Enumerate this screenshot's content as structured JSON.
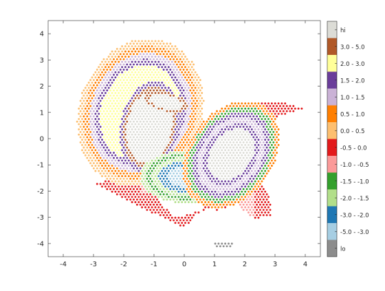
{
  "chart_data": {
    "type": "scatter",
    "title": "",
    "xlabel": "",
    "ylabel": "",
    "xlim": [
      -4.5,
      4.5
    ],
    "ylim": [
      -4.5,
      4.5
    ],
    "x_ticks": [
      "-4",
      "-3",
      "-2",
      "-1",
      "0",
      "1",
      "2",
      "3",
      "4"
    ],
    "y_ticks": [
      "-4",
      "-3",
      "-2",
      "-1",
      "0",
      "1",
      "2",
      "3",
      "4"
    ],
    "grid": false,
    "marker": "dot",
    "colorbar": {
      "placement": "right",
      "classes": [
        {
          "label": "hi",
          "color": "#dcdcd6"
        },
        {
          "label": "3.0 - 5.0",
          "color": "#b15928"
        },
        {
          "label": "2.0 - 3.0",
          "color": "#ffff99"
        },
        {
          "label": "1.5 - 2.0",
          "color": "#6a3d9a"
        },
        {
          "label": "1.0 - 1.5",
          "color": "#cab2d6"
        },
        {
          "label": "0.5 - 1.0",
          "color": "#ff7f00"
        },
        {
          "label": "0.0 - 0.5",
          "color": "#fdbf6f"
        },
        {
          "label": "-0.5 - 0.0",
          "color": "#e31a1c"
        },
        {
          "label": "-1.0 - -0.5",
          "color": "#fb9a99"
        },
        {
          "label": "-1.5 - -1.0",
          "color": "#33a02c"
        },
        {
          "label": "-2.0 - -1.5",
          "color": "#b2df8a"
        },
        {
          "label": "-3.0 - -2.0",
          "color": "#1f78b4"
        },
        {
          "label": "-5.0 - -3.0",
          "color": "#a6cee3"
        },
        {
          "label": "lo",
          "color": "#8c8c8c"
        }
      ]
    },
    "regions": [
      {
        "name": "left blob",
        "center": [
          -1.45,
          1.0
        ],
        "rx": 2.05,
        "ry": 2.85,
        "rotate_deg": -12,
        "max_class": "2.0 - 3.0"
      },
      {
        "name": "left blob core",
        "center": [
          -1.15,
          0.45
        ],
        "rx": 0.85,
        "ry": 1.55,
        "rotate_deg": -8,
        "class": "hi"
      },
      {
        "name": "upper lobe core",
        "center": [
          -0.6,
          1.4
        ],
        "rx": 0.75,
        "ry": 0.35,
        "rotate_deg": -15,
        "class": "hi"
      },
      {
        "name": "right upper blob",
        "center": [
          1.55,
          -0.6
        ],
        "rx": 1.45,
        "ry": 2.15,
        "rotate_deg": -25,
        "max_class": "hi"
      },
      {
        "name": "lower left blob",
        "center": [
          0.05,
          -1.45
        ],
        "rx": 1.5,
        "ry": 1.0,
        "rotate_deg": 0,
        "min_class": "-5.0 - -3.0"
      },
      {
        "name": "right wing",
        "polygon": [
          [
            1.4,
            1.1
          ],
          [
            3.0,
            1.45
          ],
          [
            4.0,
            1.15
          ],
          [
            3.0,
            0.8
          ],
          [
            2.55,
            0.2
          ],
          [
            2.3,
            -1.3
          ],
          [
            2.8,
            -2.1
          ],
          [
            2.9,
            -2.95
          ],
          [
            2.3,
            -3.05
          ],
          [
            1.9,
            -2.7
          ],
          [
            1.55,
            -2.15
          ],
          [
            2.05,
            -1.3
          ],
          [
            1.7,
            0.4
          ]
        ],
        "class": "-0.5 - 0.0"
      },
      {
        "name": "bottom left wedge",
        "polygon": [
          [
            -3.0,
            -1.72
          ],
          [
            -1.3,
            -1.25
          ],
          [
            -0.6,
            -1.2
          ],
          [
            -0.9,
            -2.3
          ],
          [
            -0.3,
            -3.0
          ],
          [
            0.7,
            -2.7
          ],
          [
            1.55,
            -2.6
          ],
          [
            1.7,
            -1.1
          ],
          [
            1.15,
            -2.75
          ],
          [
            0.7,
            -2.55
          ],
          [
            0.0,
            -3.4
          ],
          [
            -1.2,
            -2.75
          ]
        ],
        "class": "-0.5 - 0.0"
      },
      {
        "name": "top island",
        "center": [
          -1.35,
          4.05
        ],
        "rx": 0.45,
        "ry": 0.14,
        "class": "hi"
      },
      {
        "name": "bottom island",
        "center": [
          1.3,
          -4.05
        ],
        "rx": 0.35,
        "ry": 0.1,
        "class": "lo"
      }
    ]
  }
}
